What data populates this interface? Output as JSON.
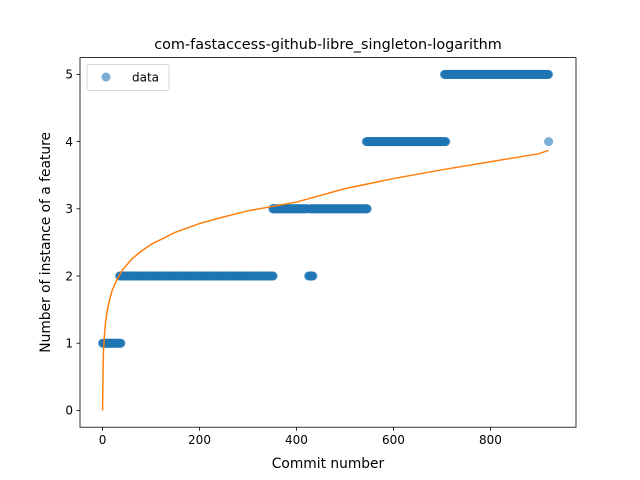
{
  "chart_data": {
    "type": "scatter",
    "title": "com-fastaccess-github-libre_singleton-logarithm",
    "xlabel": "Commit number",
    "ylabel": "Number of instance of a feature",
    "xlim": [
      -46.5,
      976.5
    ],
    "ylim": [
      -0.25,
      5.25
    ],
    "xticks": [
      0,
      200,
      400,
      600,
      800
    ],
    "yticks": [
      0,
      1,
      2,
      3,
      4,
      5
    ],
    "grid": false,
    "legend": {
      "position": "top-left",
      "entries": [
        "data"
      ]
    },
    "colors": {
      "data": "#1f77b4",
      "fit": "#ff7f0e"
    },
    "series": [
      {
        "name": "data",
        "kind": "points",
        "color": "#1f77b4",
        "runs": [
          {
            "y": 1,
            "x_from": 0,
            "x_to": 38
          },
          {
            "y": 2,
            "x_from": 35,
            "x_to": 352
          },
          {
            "y": 3,
            "x_from": 351,
            "x_to": 422
          },
          {
            "y": 2,
            "x_from": 425,
            "x_to": 434
          },
          {
            "y": 3,
            "x_from": 428,
            "x_to": 546
          },
          {
            "y": 4,
            "x_from": 544,
            "x_to": 708
          },
          {
            "y": 5,
            "x_from": 705,
            "x_to": 920
          },
          {
            "y": 4,
            "x_from": 920,
            "x_to": 920
          }
        ]
      },
      {
        "kind": "line",
        "color": "#ff7f0e",
        "x": [
          0,
          1,
          2,
          4,
          6,
          10,
          15,
          20,
          30,
          40,
          60,
          80,
          100,
          150,
          200,
          250,
          300,
          400,
          500,
          600,
          700,
          800,
          900,
          920
        ],
        "y": [
          0.0,
          0.57,
          0.9,
          1.13,
          1.3,
          1.5,
          1.66,
          1.79,
          1.95,
          2.08,
          2.25,
          2.37,
          2.47,
          2.65,
          2.78,
          2.88,
          2.97,
          3.1,
          3.3,
          3.45,
          3.58,
          3.7,
          3.82,
          3.87
        ]
      }
    ]
  }
}
